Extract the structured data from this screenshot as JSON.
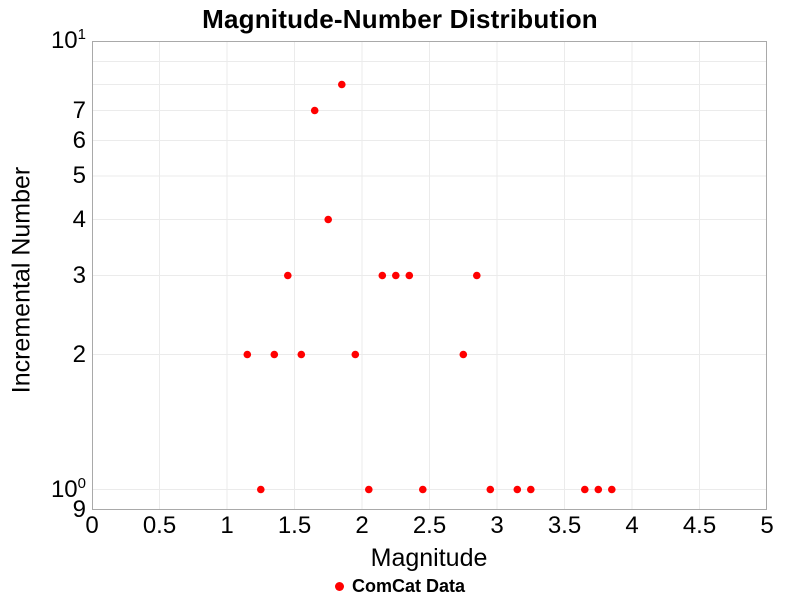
{
  "chart_data": {
    "type": "scatter",
    "title": "Magnitude-Number Distribution",
    "xlabel": "Magnitude",
    "ylabel": "Incremental Number",
    "xlim": [
      0,
      5
    ],
    "ylim": [
      0.9,
      10
    ],
    "yscale": "log",
    "grid": true,
    "legend_position": "bottom-center",
    "series": [
      {
        "name": "ComCat Data",
        "color": "#ff0000",
        "marker": "circle",
        "x": [
          1.15,
          1.25,
          1.35,
          1.45,
          1.55,
          1.65,
          1.75,
          1.85,
          1.95,
          2.05,
          2.15,
          2.25,
          2.35,
          2.45,
          2.75,
          2.85,
          2.95,
          3.15,
          3.25,
          3.65,
          3.75,
          3.85
        ],
        "y": [
          2,
          1,
          2,
          3,
          2,
          7,
          4,
          8,
          2,
          1,
          3,
          3,
          3,
          1,
          2,
          3,
          1,
          1,
          1,
          1,
          1,
          1
        ]
      }
    ],
    "x_ticks": {
      "values": [
        0,
        0.5,
        1,
        1.5,
        2,
        2.5,
        3,
        3.5,
        4,
        4.5,
        5
      ],
      "labels": [
        "0",
        "0.5",
        "1",
        "1.5",
        "2",
        "2.5",
        "3",
        "3.5",
        "4",
        "4.5",
        "5"
      ]
    },
    "y_ticks": [
      {
        "value": 10,
        "base": "10",
        "exp": "1"
      },
      {
        "value": 7,
        "label": "7"
      },
      {
        "value": 6,
        "label": "6"
      },
      {
        "value": 5,
        "label": "5"
      },
      {
        "value": 4,
        "label": "4"
      },
      {
        "value": 3,
        "label": "3"
      },
      {
        "value": 2,
        "label": "2"
      },
      {
        "value": 1,
        "base": "10",
        "exp": "0"
      },
      {
        "value": 0.9,
        "label": "9"
      }
    ],
    "y_grid_values": [
      9,
      8,
      7,
      6,
      5,
      4,
      3,
      2,
      1
    ],
    "colors": {
      "marker": "#ff0000",
      "grid": "#ebebeb",
      "spine": "#a9a9a9",
      "text": "#000000",
      "background": "#ffffff"
    }
  }
}
